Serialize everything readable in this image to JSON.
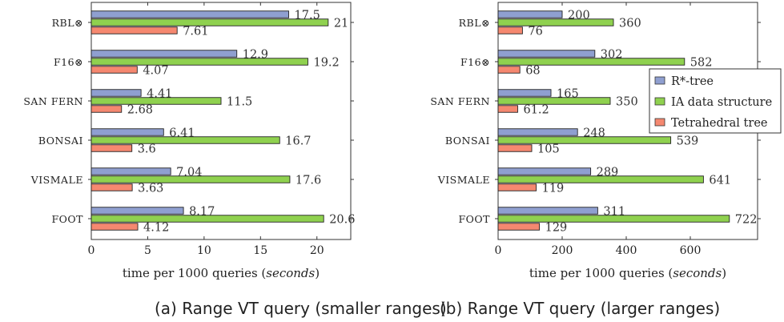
{
  "colors": {
    "rtree": "#8f9fd0",
    "ia": "#8fd14f",
    "tetra": "#f58870"
  },
  "legend": {
    "items": [
      "R*-tree",
      "IA data structure",
      "Tetrahedral tree"
    ]
  },
  "chart_data": [
    {
      "type": "bar",
      "orientation": "horizontal",
      "categories": [
        "RBL⊗",
        "F16⊗",
        "SAN FERN",
        "BONSAI",
        "VISMALE",
        "FOOT"
      ],
      "series": [
        {
          "name": "R*-tree",
          "values": [
            17.5,
            12.9,
            4.41,
            6.41,
            7.04,
            8.17
          ],
          "labels": [
            "17.5",
            "12.9",
            "4.41",
            "6.41",
            "7.04",
            "8.17"
          ]
        },
        {
          "name": "IA data structure",
          "values": [
            21,
            19.2,
            11.5,
            16.7,
            17.6,
            20.6
          ],
          "labels": [
            "21",
            "19.2",
            "11.5",
            "16.7",
            "17.6",
            "20.6"
          ]
        },
        {
          "name": "Tetrahedral tree",
          "values": [
            7.61,
            4.07,
            2.68,
            3.6,
            3.63,
            4.12
          ],
          "labels": [
            "7.61",
            "4.07",
            "2.68",
            "3.6",
            "3.63",
            "4.12"
          ]
        }
      ],
      "xticks": [
        0,
        5,
        10,
        15,
        20
      ],
      "xlim": [
        0,
        23
      ],
      "xlabel_prefix": "time per 1000 queries (",
      "xlabel_italic": "seconds",
      "xlabel_suffix": ")",
      "caption": "(a) Range VT query (smaller ranges)"
    },
    {
      "type": "bar",
      "orientation": "horizontal",
      "categories": [
        "RBL⊗",
        "F16⊗",
        "SAN FERN",
        "BONSAI",
        "VISMALE",
        "FOOT"
      ],
      "series": [
        {
          "name": "R*-tree",
          "values": [
            200,
            302,
            165,
            248,
            289,
            311
          ],
          "labels": [
            "200",
            "302",
            "165",
            "248",
            "289",
            "311"
          ]
        },
        {
          "name": "IA data structure",
          "values": [
            360,
            582,
            350,
            539,
            641,
            722
          ],
          "labels": [
            "360",
            "582",
            "350",
            "539",
            "641",
            "722"
          ]
        },
        {
          "name": "Tetrahedral tree",
          "values": [
            76,
            68,
            61.2,
            105,
            119,
            129
          ],
          "labels": [
            "76",
            "68",
            "61.2",
            "105",
            "119",
            "129"
          ]
        }
      ],
      "xticks": [
        0,
        200,
        400,
        600
      ],
      "xlim": [
        0,
        810
      ],
      "xlabel_prefix": "time per 1000 queries (",
      "xlabel_italic": "seconds",
      "xlabel_suffix": ")",
      "caption": "(b) Range VT query (larger ranges)",
      "legend_position": "right"
    }
  ]
}
